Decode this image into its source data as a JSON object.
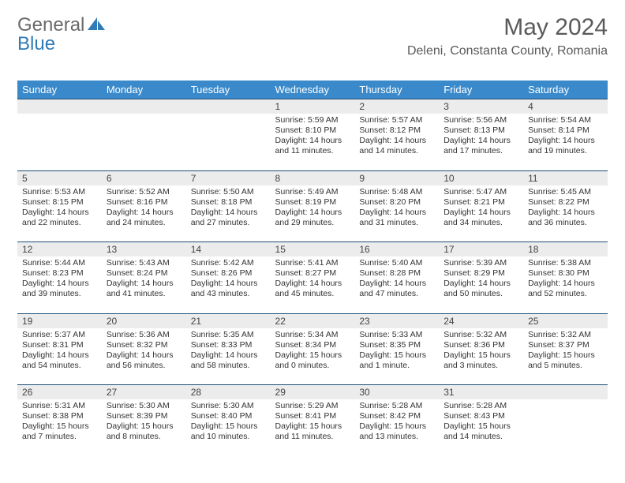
{
  "logo": {
    "part1": "General",
    "part2": "Blue"
  },
  "title": "May 2024",
  "location": "Deleni, Constanta County, Romania",
  "colors": {
    "header_bg": "#3a8acb",
    "header_text": "#ffffff",
    "daynum_bg": "#ececec",
    "row_border": "#1d4f7a",
    "logo_gray": "#6a6a6a",
    "logo_blue": "#2f7bb8",
    "page_bg": "#ffffff",
    "text": "#333333"
  },
  "weekdays": [
    "Sunday",
    "Monday",
    "Tuesday",
    "Wednesday",
    "Thursday",
    "Friday",
    "Saturday"
  ],
  "font": {
    "family": "Arial",
    "cell_size_pt": 8,
    "header_size_pt": 10,
    "title_size_pt": 22
  },
  "weeks": [
    [
      null,
      null,
      null,
      {
        "n": "1",
        "sunrise": "5:59 AM",
        "sunset": "8:10 PM",
        "daylight": "14 hours and 11 minutes."
      },
      {
        "n": "2",
        "sunrise": "5:57 AM",
        "sunset": "8:12 PM",
        "daylight": "14 hours and 14 minutes."
      },
      {
        "n": "3",
        "sunrise": "5:56 AM",
        "sunset": "8:13 PM",
        "daylight": "14 hours and 17 minutes."
      },
      {
        "n": "4",
        "sunrise": "5:54 AM",
        "sunset": "8:14 PM",
        "daylight": "14 hours and 19 minutes."
      }
    ],
    [
      {
        "n": "5",
        "sunrise": "5:53 AM",
        "sunset": "8:15 PM",
        "daylight": "14 hours and 22 minutes."
      },
      {
        "n": "6",
        "sunrise": "5:52 AM",
        "sunset": "8:16 PM",
        "daylight": "14 hours and 24 minutes."
      },
      {
        "n": "7",
        "sunrise": "5:50 AM",
        "sunset": "8:18 PM",
        "daylight": "14 hours and 27 minutes."
      },
      {
        "n": "8",
        "sunrise": "5:49 AM",
        "sunset": "8:19 PM",
        "daylight": "14 hours and 29 minutes."
      },
      {
        "n": "9",
        "sunrise": "5:48 AM",
        "sunset": "8:20 PM",
        "daylight": "14 hours and 31 minutes."
      },
      {
        "n": "10",
        "sunrise": "5:47 AM",
        "sunset": "8:21 PM",
        "daylight": "14 hours and 34 minutes."
      },
      {
        "n": "11",
        "sunrise": "5:45 AM",
        "sunset": "8:22 PM",
        "daylight": "14 hours and 36 minutes."
      }
    ],
    [
      {
        "n": "12",
        "sunrise": "5:44 AM",
        "sunset": "8:23 PM",
        "daylight": "14 hours and 39 minutes."
      },
      {
        "n": "13",
        "sunrise": "5:43 AM",
        "sunset": "8:24 PM",
        "daylight": "14 hours and 41 minutes."
      },
      {
        "n": "14",
        "sunrise": "5:42 AM",
        "sunset": "8:26 PM",
        "daylight": "14 hours and 43 minutes."
      },
      {
        "n": "15",
        "sunrise": "5:41 AM",
        "sunset": "8:27 PM",
        "daylight": "14 hours and 45 minutes."
      },
      {
        "n": "16",
        "sunrise": "5:40 AM",
        "sunset": "8:28 PM",
        "daylight": "14 hours and 47 minutes."
      },
      {
        "n": "17",
        "sunrise": "5:39 AM",
        "sunset": "8:29 PM",
        "daylight": "14 hours and 50 minutes."
      },
      {
        "n": "18",
        "sunrise": "5:38 AM",
        "sunset": "8:30 PM",
        "daylight": "14 hours and 52 minutes."
      }
    ],
    [
      {
        "n": "19",
        "sunrise": "5:37 AM",
        "sunset": "8:31 PM",
        "daylight": "14 hours and 54 minutes."
      },
      {
        "n": "20",
        "sunrise": "5:36 AM",
        "sunset": "8:32 PM",
        "daylight": "14 hours and 56 minutes."
      },
      {
        "n": "21",
        "sunrise": "5:35 AM",
        "sunset": "8:33 PM",
        "daylight": "14 hours and 58 minutes."
      },
      {
        "n": "22",
        "sunrise": "5:34 AM",
        "sunset": "8:34 PM",
        "daylight": "15 hours and 0 minutes."
      },
      {
        "n": "23",
        "sunrise": "5:33 AM",
        "sunset": "8:35 PM",
        "daylight": "15 hours and 1 minute."
      },
      {
        "n": "24",
        "sunrise": "5:32 AM",
        "sunset": "8:36 PM",
        "daylight": "15 hours and 3 minutes."
      },
      {
        "n": "25",
        "sunrise": "5:32 AM",
        "sunset": "8:37 PM",
        "daylight": "15 hours and 5 minutes."
      }
    ],
    [
      {
        "n": "26",
        "sunrise": "5:31 AM",
        "sunset": "8:38 PM",
        "daylight": "15 hours and 7 minutes."
      },
      {
        "n": "27",
        "sunrise": "5:30 AM",
        "sunset": "8:39 PM",
        "daylight": "15 hours and 8 minutes."
      },
      {
        "n": "28",
        "sunrise": "5:30 AM",
        "sunset": "8:40 PM",
        "daylight": "15 hours and 10 minutes."
      },
      {
        "n": "29",
        "sunrise": "5:29 AM",
        "sunset": "8:41 PM",
        "daylight": "15 hours and 11 minutes."
      },
      {
        "n": "30",
        "sunrise": "5:28 AM",
        "sunset": "8:42 PM",
        "daylight": "15 hours and 13 minutes."
      },
      {
        "n": "31",
        "sunrise": "5:28 AM",
        "sunset": "8:43 PM",
        "daylight": "15 hours and 14 minutes."
      },
      null
    ]
  ]
}
